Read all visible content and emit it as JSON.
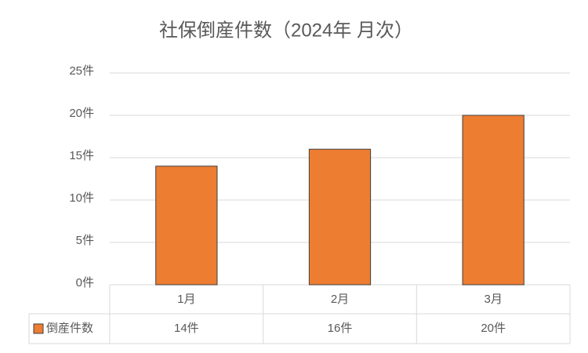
{
  "chart_data": {
    "type": "bar",
    "title": "社保倒産件数（2024年 月次）",
    "categories": [
      "1月",
      "2月",
      "3月"
    ],
    "series": [
      {
        "name": "倒産件数",
        "color": "#ed7d31",
        "values": [
          14,
          16,
          20
        ],
        "value_labels": [
          "14件",
          "16件",
          "20件"
        ]
      }
    ],
    "ylim": [
      0,
      25
    ],
    "yticks": [
      {
        "value": 0,
        "label": "0件"
      },
      {
        "value": 5,
        "label": "5件"
      },
      {
        "value": 10,
        "label": "10件"
      },
      {
        "value": 15,
        "label": "15件"
      },
      {
        "value": 20,
        "label": "20件"
      },
      {
        "value": 25,
        "label": "25件"
      }
    ],
    "grid": true
  }
}
